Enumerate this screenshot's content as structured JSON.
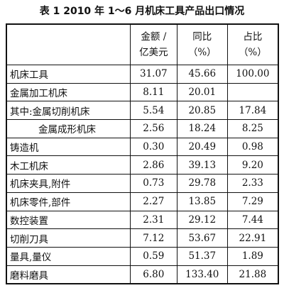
{
  "title": "表 1  2010 年 1～6 月机床工具产品出口情况",
  "table": {
    "header": [
      [
        "金额 /",
        "亿美元"
      ],
      [
        "同比",
        "（%）"
      ],
      [
        "占比",
        "（%）"
      ]
    ],
    "rows": [
      [
        "机床工具",
        "31.07",
        "45.66",
        "100.00"
      ],
      [
        "金属加工机床",
        "8.11",
        "20.01"
      ],
      [
        "其中:金属切削机床",
        "5.54",
        "20.85",
        "17.84"
      ],
      [
        "金属成形机床",
        "2.56",
        "18.24",
        "8.25"
      ],
      [
        "铸造机",
        "0.30",
        "20.49",
        "0.98"
      ],
      [
        "木工机床",
        "2.86",
        "39.13",
        "9.20"
      ],
      [
        "机床夹具,附件",
        "0.73",
        "29.78",
        "2.33"
      ],
      [
        "机床零件,部件",
        "2.27",
        "13.85",
        "7.29"
      ],
      [
        "数控装置",
        "2.31",
        "29.12",
        "7.44"
      ],
      [
        "切削刀具",
        "7.12",
        "53.67",
        "22.91"
      ],
      [
        "量具,量仪",
        "0.59",
        "51.37",
        "1.89"
      ],
      [
        "磨料磨具",
        "6.80",
        "133.40",
        "21.88"
      ]
    ]
  }
}
